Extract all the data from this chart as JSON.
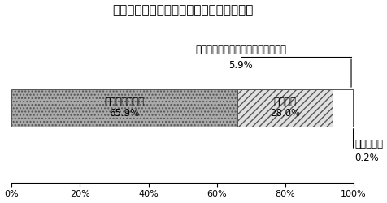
{
  "title": "令和３年度取扱件数における業務別構成比",
  "segments": [
    {
      "label": "証明書発行業務",
      "value": 65.9,
      "pct_label": "65.9%"
    },
    {
      "label": "収納業務",
      "value": 28.0,
      "pct_label": "28.0%"
    },
    {
      "label": "戸籍・住民異動・印鑑登録受付業務",
      "value": 5.9,
      "pct_label": "5.9%"
    },
    {
      "label": "その他業務",
      "value": 0.2,
      "pct_label": "0.2%"
    }
  ],
  "hatch_styles": [
    "....",
    "////",
    "",
    "...."
  ],
  "face_colors": [
    "#aaaaaa",
    "#e0e0e0",
    "#ffffff",
    "#aaaaaa"
  ],
  "edge_colors": [
    "#555555",
    "#555555",
    "#555555",
    "#555555"
  ],
  "background_color": "#ffffff",
  "title_fontsize": 11,
  "label_fontsize": 8.5,
  "tick_fontsize": 8
}
